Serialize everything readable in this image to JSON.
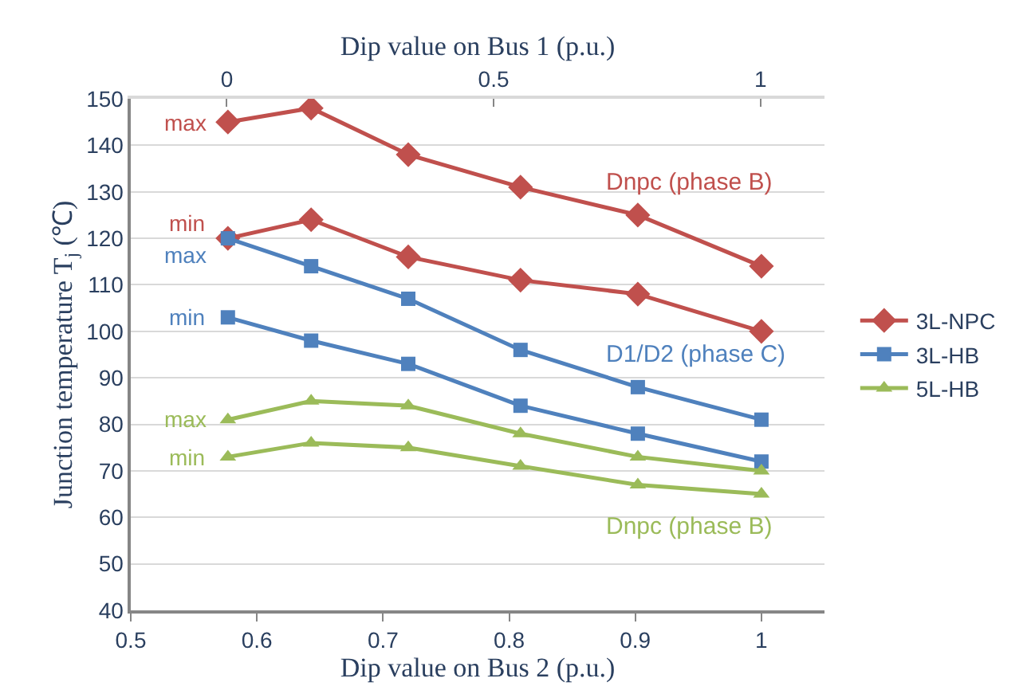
{
  "chart_data": {
    "type": "line",
    "xlabel": "Dip value on Bus 2 (p.u.)",
    "x2label": "Dip value on Bus 1 (p.u.)",
    "ylabel": "Junction temperature T$_{j}$ (℃)",
    "x": [
      0.577,
      0.643,
      0.72,
      0.809,
      0.902,
      1
    ],
    "series": [
      {
        "name": "3L-NPC",
        "color": "#c0504d",
        "marker": "diamond",
        "values": [
          145,
          148,
          138,
          131,
          125,
          114
        ]
      },
      {
        "color": "#c0504d",
        "marker": "diamond",
        "values": [
          120,
          124,
          116,
          111,
          108,
          100
        ]
      },
      {
        "name": "3L-HB",
        "color": "#4f81bd",
        "marker": "square",
        "values": [
          120,
          114,
          107,
          96,
          88,
          81
        ]
      },
      {
        "color": "#4f81bd",
        "marker": "square",
        "values": [
          103,
          98,
          93,
          84,
          78,
          72
        ]
      },
      {
        "name": "5L-HB",
        "color": "#9bbb59",
        "marker": "triangle",
        "values": [
          81,
          85,
          84,
          78,
          73,
          70
        ]
      },
      {
        "color": "#9bbb59",
        "marker": "triangle",
        "values": [
          73,
          76,
          75,
          71,
          67,
          65
        ]
      }
    ],
    "annotations": [
      "max",
      "min",
      "max",
      "min",
      "max",
      "min",
      "Dnpc (phase B)",
      "D1/D2 (phase C)",
      "Dnpc (phase B)"
    ],
    "xlim": [
      0.5,
      1.05
    ],
    "xticks": [
      0.5,
      0.6,
      0.7,
      0.8,
      0.9,
      1
    ],
    "x2lim": [
      -0.18,
      1.12
    ],
    "x2ticks": [
      0,
      0.5,
      1
    ],
    "ylim": [
      40,
      150
    ],
    "yticks": [
      40,
      50,
      60,
      70,
      80,
      90,
      100,
      110,
      120,
      130,
      140,
      150
    ],
    "grid": "y",
    "legend": "right",
    "line_style": "solid"
  }
}
